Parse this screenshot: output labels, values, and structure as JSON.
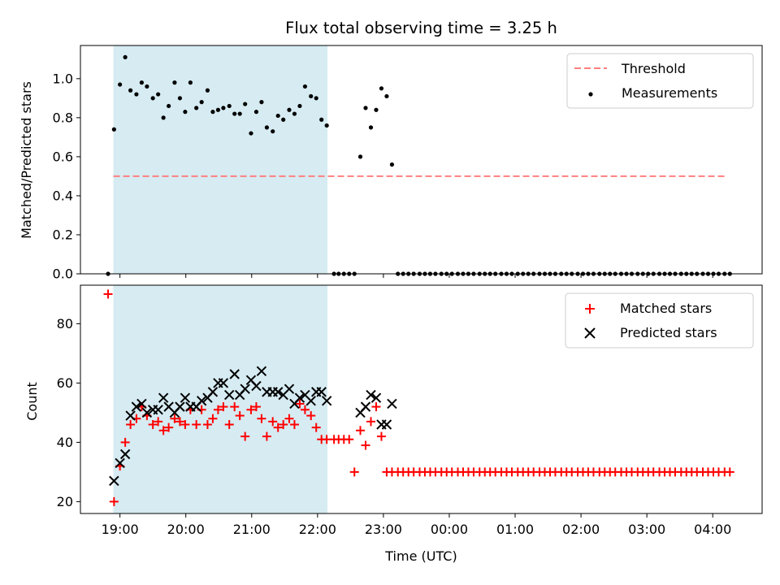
{
  "chart_data": {
    "type": "scatter",
    "title": "Flux total observing time = 3.25 h",
    "xlabel": "Time (UTC)",
    "x_unit": "hours UTC (times after midnight written as 24+h)",
    "xlim": [
      18.4,
      28.75
    ],
    "x_ticks": [
      {
        "value": 19,
        "label": "19:00"
      },
      {
        "value": 20,
        "label": "20:00"
      },
      {
        "value": 21,
        "label": "21:00"
      },
      {
        "value": 22,
        "label": "22:00"
      },
      {
        "value": 23,
        "label": "23:00"
      },
      {
        "value": 24,
        "label": "00:00"
      },
      {
        "value": 25,
        "label": "01:00"
      },
      {
        "value": 26,
        "label": "02:00"
      },
      {
        "value": 27,
        "label": "03:00"
      },
      {
        "value": 28,
        "label": "04:00"
      }
    ],
    "observing_span": [
      18.9,
      22.15
    ],
    "observing_span_color": "#add8e6",
    "panels": [
      {
        "id": "ratio",
        "ylabel": "Matched/Predicted stars",
        "ylim": [
          0,
          1.17
        ],
        "y_ticks": [
          {
            "value": 0,
            "label": "0.0"
          },
          {
            "value": 0.2,
            "label": "0.2"
          },
          {
            "value": 0.4,
            "label": "0.4"
          },
          {
            "value": 0.6,
            "label": "0.6"
          },
          {
            "value": 0.8,
            "label": "0.8"
          },
          {
            "value": 1.0,
            "label": "1.0"
          }
        ],
        "threshold": {
          "name": "Threshold",
          "value": 0.5,
          "x_range": [
            18.9,
            28.2
          ],
          "color": "#ff7f7f",
          "style": "dashed"
        },
        "measurements": {
          "name": "Measurements",
          "color": "#000000",
          "x": [
            18.82,
            18.91,
            19.0,
            19.08,
            19.16,
            19.25,
            19.33,
            19.41,
            19.5,
            19.58,
            19.66,
            19.74,
            19.83,
            19.91,
            19.99,
            20.07,
            20.16,
            20.24,
            20.33,
            20.41,
            20.49,
            20.57,
            20.66,
            20.74,
            20.82,
            20.9,
            20.99,
            21.07,
            21.15,
            21.23,
            21.32,
            21.4,
            21.48,
            21.57,
            21.65,
            21.73,
            21.81,
            21.9,
            21.98,
            22.06,
            22.14,
            22.25,
            22.32,
            22.4,
            22.48,
            22.56,
            22.65,
            22.73,
            22.81,
            22.89,
            22.97,
            23.05,
            23.13,
            23.22,
            23.3,
            23.38,
            23.46,
            23.55,
            23.63,
            23.71,
            23.79,
            23.88,
            23.96,
            24.04,
            24.13,
            24.21,
            24.29,
            24.37,
            24.46,
            24.54,
            24.62,
            24.7,
            24.79,
            24.87,
            24.95,
            25.04,
            25.12,
            25.2,
            25.28,
            25.37,
            25.45,
            25.53,
            25.61,
            25.7,
            25.78,
            25.86,
            25.95,
            26.03,
            26.11,
            26.19,
            26.28,
            26.36,
            26.44,
            26.52,
            26.61,
            26.69,
            26.77,
            26.86,
            26.94,
            27.02,
            27.1,
            27.19,
            27.27,
            27.35,
            27.43,
            27.52,
            27.6,
            27.68,
            27.76,
            27.85,
            27.93,
            28.01,
            28.09,
            28.18,
            28.26
          ],
          "y": [
            0.0,
            0.74,
            0.97,
            1.11,
            0.94,
            0.92,
            0.98,
            0.96,
            0.9,
            0.92,
            0.8,
            0.86,
            0.98,
            0.9,
            0.83,
            0.98,
            0.85,
            0.88,
            0.94,
            0.83,
            0.84,
            0.85,
            0.86,
            0.82,
            0.82,
            0.87,
            0.72,
            0.83,
            0.88,
            0.75,
            0.73,
            0.81,
            0.79,
            0.84,
            0.82,
            0.86,
            0.96,
            0.91,
            0.9,
            0.79,
            0.76,
            0.0,
            0.0,
            0.0,
            0.0,
            0.0,
            0.6,
            0.85,
            0.75,
            0.84,
            0.95,
            0.91,
            0.56,
            0.0,
            0.0,
            0.0,
            0.0,
            0.0,
            0.0,
            0.0,
            0.0,
            0.0,
            0.0,
            0.0,
            0.0,
            0.0,
            0.0,
            0.0,
            0.0,
            0.0,
            0.0,
            0.0,
            0.0,
            0.0,
            0.0,
            0.0,
            0.0,
            0.0,
            0.0,
            0.0,
            0.0,
            0.0,
            0.0,
            0.0,
            0.0,
            0.0,
            0.0,
            0.0,
            0.0,
            0.0,
            0.0,
            0.0,
            0.0,
            0.0,
            0.0,
            0.0,
            0.0,
            0.0,
            0.0,
            0.0,
            0.0,
            0.0,
            0.0,
            0.0,
            0.0,
            0.0,
            0.0,
            0.0,
            0.0,
            0.0,
            0.0,
            0.0,
            0.0,
            0.0,
            0.0
          ]
        },
        "legend_position": "upper right"
      },
      {
        "id": "counts",
        "ylabel": "Count",
        "ylim": [
          16,
          93
        ],
        "y_ticks": [
          {
            "value": 20,
            "label": "20"
          },
          {
            "value": 40,
            "label": "40"
          },
          {
            "value": 60,
            "label": "60"
          },
          {
            "value": 80,
            "label": "80"
          }
        ],
        "series": [
          {
            "name": "Matched stars",
            "marker": "plus",
            "color": "#ff0000",
            "x": [
              18.82,
              18.91,
              19.0,
              19.08,
              19.16,
              19.25,
              19.33,
              19.41,
              19.5,
              19.58,
              19.66,
              19.74,
              19.83,
              19.91,
              19.99,
              20.07,
              20.16,
              20.24,
              20.33,
              20.41,
              20.49,
              20.57,
              20.66,
              20.74,
              20.82,
              20.9,
              20.99,
              21.07,
              21.15,
              21.23,
              21.32,
              21.4,
              21.48,
              21.57,
              21.65,
              21.73,
              21.81,
              21.9,
              21.98,
              22.06,
              22.14,
              22.25,
              22.32,
              22.4,
              22.48,
              22.56,
              22.65,
              22.73,
              22.81,
              22.89,
              22.97,
              23.05,
              23.13,
              23.22,
              23.3,
              23.38,
              23.46,
              23.55,
              23.63,
              23.71,
              23.79,
              23.88,
              23.96,
              24.04,
              24.13,
              24.21,
              24.29,
              24.37,
              24.46,
              24.54,
              24.62,
              24.7,
              24.79,
              24.87,
              24.95,
              25.04,
              25.12,
              25.2,
              25.28,
              25.37,
              25.45,
              25.53,
              25.61,
              25.7,
              25.78,
              25.86,
              25.95,
              26.03,
              26.11,
              26.19,
              26.28,
              26.36,
              26.44,
              26.52,
              26.61,
              26.69,
              26.77,
              26.86,
              26.94,
              27.02,
              27.1,
              27.19,
              27.27,
              27.35,
              27.43,
              27.52,
              27.6,
              27.68,
              27.76,
              27.85,
              27.93,
              28.01,
              28.09,
              28.18,
              28.26
            ],
            "y": [
              90,
              20,
              32,
              40,
              46,
              48,
              52,
              49,
              46,
              47,
              44,
              45,
              48,
              47,
              46,
              51,
              46,
              51,
              46,
              48,
              51,
              52,
              46,
              52,
              49,
              42,
              51,
              52,
              48,
              42,
              47,
              45,
              46,
              48,
              46,
              53,
              51,
              49,
              45,
              41,
              41,
              41,
              41,
              41,
              41,
              30,
              44,
              39,
              47,
              52,
              42,
              30,
              30,
              30,
              30,
              30,
              30,
              30,
              30,
              30,
              30,
              30,
              30,
              30,
              30,
              30,
              30,
              30,
              30,
              30,
              30,
              30,
              30,
              30,
              30,
              30,
              30,
              30,
              30,
              30,
              30,
              30,
              30,
              30,
              30,
              30,
              30,
              30,
              30,
              30,
              30,
              30,
              30,
              30,
              30,
              30,
              30,
              30,
              30,
              30,
              30,
              30,
              30,
              30,
              30,
              30,
              30,
              30,
              30,
              30,
              30,
              30,
              30,
              30,
              30
            ]
          },
          {
            "name": "Predicted stars",
            "marker": "x",
            "color": "#000000",
            "x": [
              18.91,
              19.0,
              19.08,
              19.16,
              19.25,
              19.33,
              19.41,
              19.5,
              19.58,
              19.66,
              19.74,
              19.83,
              19.91,
              19.99,
              20.07,
              20.16,
              20.24,
              20.33,
              20.41,
              20.49,
              20.57,
              20.66,
              20.74,
              20.82,
              20.9,
              20.99,
              21.07,
              21.15,
              21.23,
              21.32,
              21.4,
              21.48,
              21.57,
              21.65,
              21.73,
              21.81,
              21.9,
              21.98,
              22.06,
              22.14,
              22.65,
              22.73,
              22.81,
              22.89,
              22.97,
              23.05,
              23.13
            ],
            "y": [
              27,
              33,
              36,
              49,
              52,
              53,
              50,
              51,
              51,
              55,
              52,
              50,
              52,
              55,
              52,
              52,
              54,
              55,
              57,
              60,
              60,
              56,
              63,
              56,
              58,
              61,
              59,
              64,
              57,
              57,
              57,
              56,
              58,
              53,
              55,
              56,
              54,
              57,
              57,
              54,
              50,
              52,
              56,
              55,
              46,
              46,
              53
            ]
          }
        ],
        "legend_position": "upper right"
      }
    ]
  }
}
